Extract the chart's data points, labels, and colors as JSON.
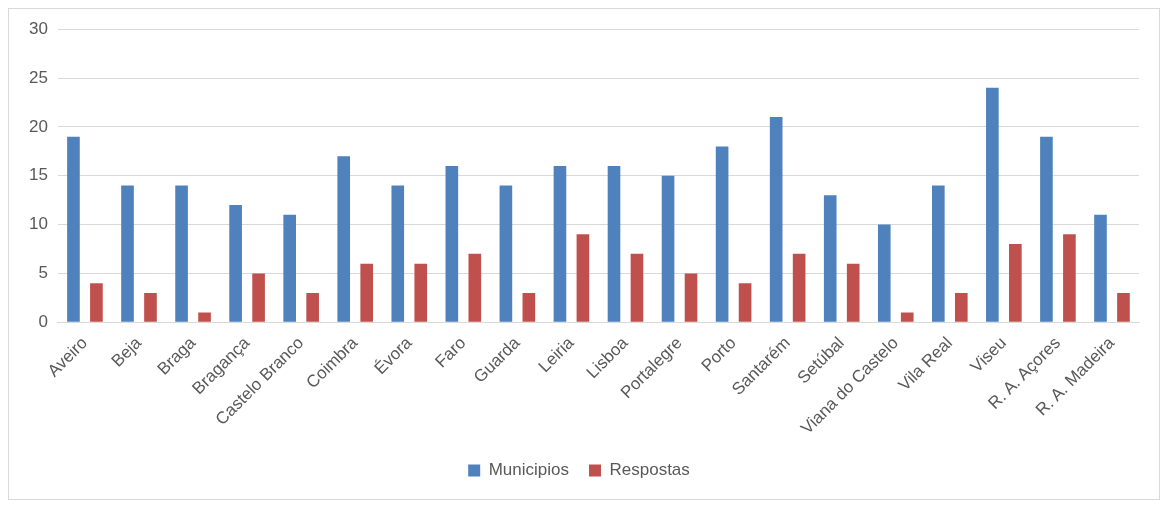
{
  "chart_data": {
    "type": "bar",
    "categories": [
      "Aveiro",
      "Beja",
      "Braga",
      "Bragança",
      "Castelo Branco",
      "Coimbra",
      "Évora",
      "Faro",
      "Guarda",
      "Leiria",
      "Lisboa",
      "Portalegre",
      "Porto",
      "Santarém",
      "Setúbal",
      "Viana do Castelo",
      "Vila Real",
      "Viseu",
      "R. A. Açores",
      "R. A. Madeira"
    ],
    "series": [
      {
        "name": "Municipios",
        "color": "#4f81bd",
        "values": [
          19,
          14,
          14,
          12,
          11,
          17,
          14,
          16,
          14,
          16,
          16,
          15,
          18,
          21,
          13,
          10,
          14,
          24,
          19,
          11
        ]
      },
      {
        "name": "Respostas",
        "color": "#c0504d",
        "values": [
          4,
          3,
          1,
          5,
          3,
          6,
          6,
          7,
          3,
          9,
          7,
          5,
          4,
          7,
          6,
          1,
          3,
          8,
          9,
          3
        ]
      }
    ],
    "ylim": [
      0,
      30
    ],
    "yticks": [
      0,
      5,
      10,
      15,
      20,
      25,
      30
    ],
    "grid": "y",
    "legend": "bottom"
  }
}
